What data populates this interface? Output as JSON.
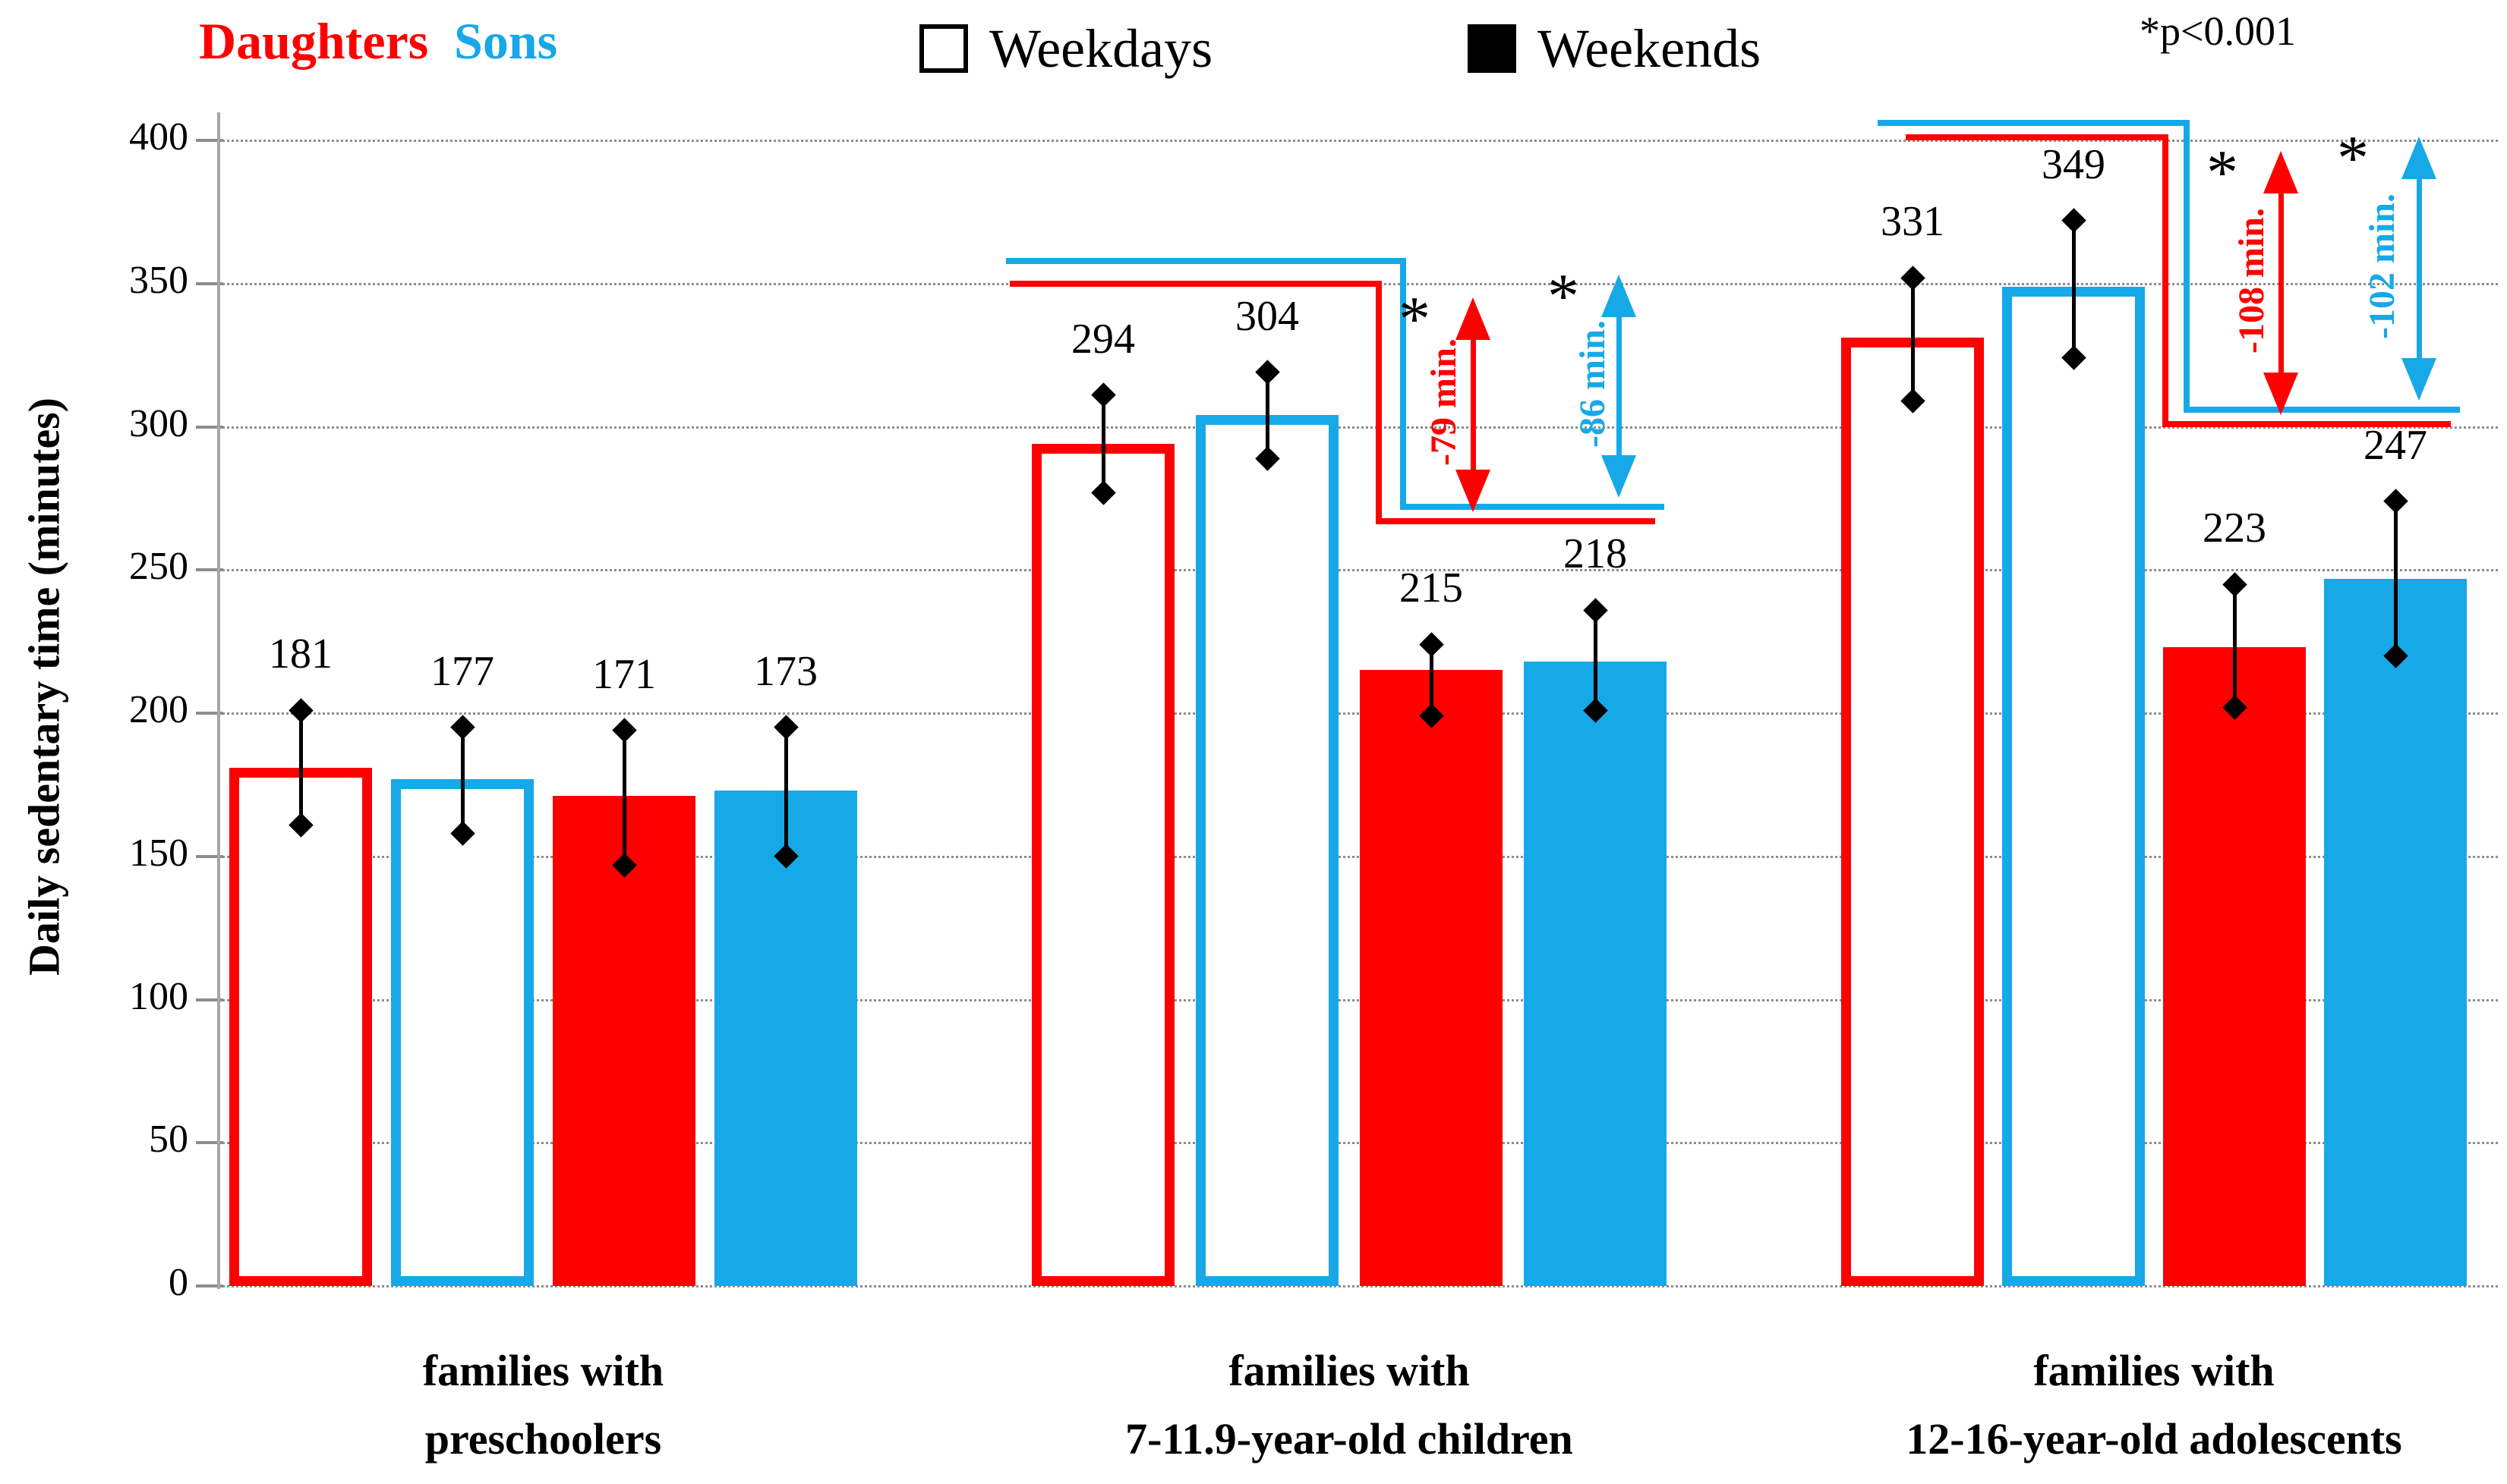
{
  "header": {
    "series_legend": [
      {
        "label": "Daughters",
        "color": "#fe0000"
      },
      {
        "label": "Sons",
        "color": "#17a8e8"
      }
    ],
    "daytype_legend": [
      {
        "label": "Weekdays",
        "fill": "open",
        "swatch": "open-square-icon"
      },
      {
        "label": "Weekends",
        "fill": "solid",
        "swatch": "filled-square-icon"
      }
    ],
    "significance_note": "*p<0.001"
  },
  "chart_data": {
    "type": "bar",
    "title": "",
    "xlabel": "",
    "ylabel": "Daily sedentary time (minutes)",
    "ylim": [
      0,
      400
    ],
    "yticks": [
      0,
      50,
      100,
      150,
      200,
      250,
      300,
      350,
      400
    ],
    "grid": "horizontal-dotted",
    "legend_position": "top",
    "colors": {
      "daughters": "#fe0000",
      "sons": "#17a8e8",
      "error_bars": "#000000"
    },
    "bar_styles": {
      "weekdays": "outline",
      "weekends": "solid"
    },
    "groups": [
      {
        "category_lines": [
          "families with",
          "preschoolers"
        ],
        "bars": [
          {
            "series": "daughters-weekdays",
            "value": 181,
            "ci_low": 161,
            "ci_high": 201,
            "color": "#fe0000",
            "fill": "open"
          },
          {
            "series": "sons-weekdays",
            "value": 177,
            "ci_low": 158,
            "ci_high": 195,
            "color": "#17a8e8",
            "fill": "open"
          },
          {
            "series": "daughters-weekends",
            "value": 171,
            "ci_low": 147,
            "ci_high": 194,
            "color": "#fe0000",
            "fill": "solid"
          },
          {
            "series": "sons-weekends",
            "value": 173,
            "ci_low": 150,
            "ci_high": 195,
            "color": "#17a8e8",
            "fill": "solid"
          }
        ],
        "annotations": []
      },
      {
        "category_lines": [
          "families with",
          "7-11.9-year-old children"
        ],
        "bars": [
          {
            "series": "daughters-weekdays",
            "value": 294,
            "ci_low": 277,
            "ci_high": 311,
            "color": "#fe0000",
            "fill": "open"
          },
          {
            "series": "sons-weekdays",
            "value": 304,
            "ci_low": 289,
            "ci_high": 319,
            "color": "#17a8e8",
            "fill": "open"
          },
          {
            "series": "daughters-weekends",
            "value": 215,
            "ci_low": 199,
            "ci_high": 224,
            "color": "#fe0000",
            "fill": "solid"
          },
          {
            "series": "sons-weekends",
            "value": 218,
            "ci_low": 201,
            "ci_high": 236,
            "color": "#17a8e8",
            "fill": "solid"
          }
        ],
        "annotations": [
          {
            "series": "daughters",
            "star": "*",
            "label": "-79 min.",
            "color": "#fe0000"
          },
          {
            "series": "sons",
            "star": "*",
            "label": "-86 min.",
            "color": "#17a8e8"
          }
        ]
      },
      {
        "category_lines": [
          "families with",
          "12-16-year-old adolescents"
        ],
        "bars": [
          {
            "series": "daughters-weekdays",
            "value": 331,
            "ci_low": 309,
            "ci_high": 352,
            "color": "#fe0000",
            "fill": "open"
          },
          {
            "series": "sons-weekdays",
            "value": 349,
            "ci_low": 324,
            "ci_high": 372,
            "color": "#17a8e8",
            "fill": "open"
          },
          {
            "series": "daughters-weekends",
            "value": 223,
            "ci_low": 202,
            "ci_high": 245,
            "color": "#fe0000",
            "fill": "solid"
          },
          {
            "series": "sons-weekends",
            "value": 247,
            "ci_low": 220,
            "ci_high": 274,
            "color": "#17a8e8",
            "fill": "solid"
          }
        ],
        "annotations": [
          {
            "series": "daughters",
            "star": "*",
            "label": "-108 min.",
            "color": "#fe0000"
          },
          {
            "series": "sons",
            "star": "*",
            "label": "-102 min.",
            "color": "#17a8e8"
          }
        ]
      }
    ]
  }
}
